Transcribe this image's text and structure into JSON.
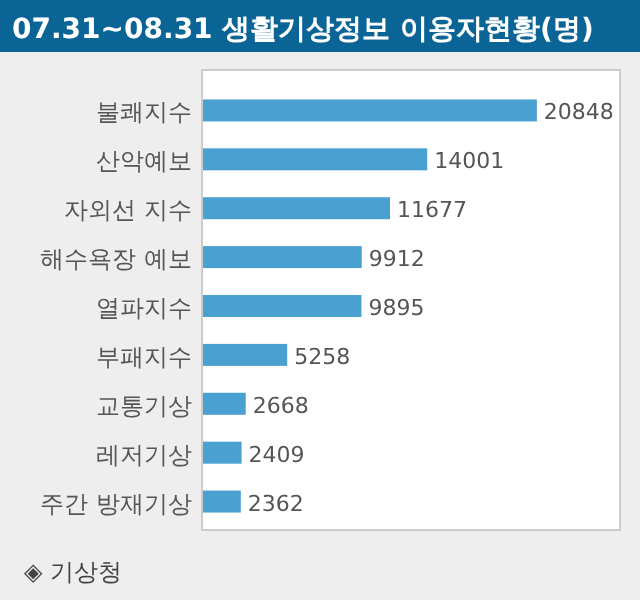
{
  "chart_data": {
    "type": "bar",
    "orientation": "horizontal",
    "title": "07.31~08.31 생활기상정보 이용자현황(명)",
    "categories": [
      "불쾌지수",
      "산악예보",
      "자외선 지수",
      "해수욕장 예보",
      "열파지수",
      "부패지수",
      "교통기상",
      "레저기상",
      "주간 방재기상"
    ],
    "values": [
      20848,
      14001,
      11677,
      9912,
      9895,
      5258,
      2668,
      2409,
      2362
    ],
    "colors": [
      "#4aa0d0",
      "#4aa0d0",
      "#4aa0d0",
      "#4aa0d0",
      "#4aa0d0",
      "#4aa0d0",
      "#4aa0d0",
      "#4aa0d0",
      "#4aa0d0"
    ],
    "data_labels": true,
    "annotations": [
      "◈ 기상청"
    ]
  }
}
